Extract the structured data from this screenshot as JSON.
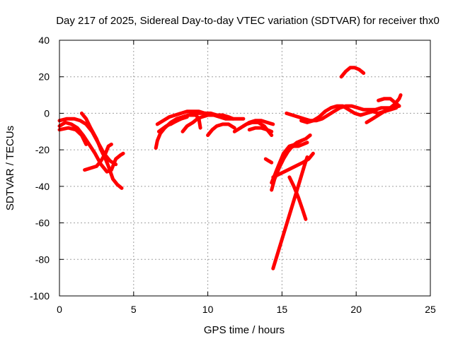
{
  "chart_data": {
    "type": "scatter",
    "title": "Day 217 of 2025, Sidereal Day-to-day VTEC variation (SDTVAR) for receiver thx0",
    "xlabel": "GPS time / hours",
    "ylabel": "SDTVAR / TECUs",
    "xlim": [
      0,
      25
    ],
    "ylim": [
      -100,
      40
    ],
    "xticks": [
      0,
      5,
      10,
      15,
      20,
      25
    ],
    "yticks": [
      -100,
      -80,
      -60,
      -40,
      -20,
      0,
      20,
      40
    ],
    "grid": true,
    "legend": "none",
    "marker": "plus",
    "color": "#ff0000",
    "tracks": [
      [
        [
          0,
          -4
        ],
        [
          0.5,
          -3
        ],
        [
          1.0,
          -3
        ],
        [
          1.4,
          -4
        ],
        [
          1.8,
          -6
        ],
        [
          2.2,
          -10
        ],
        [
          2.6,
          -16
        ],
        [
          3.0,
          -22
        ],
        [
          3.4,
          -26
        ],
        [
          3.8,
          -28
        ]
      ],
      [
        [
          0,
          -7
        ],
        [
          0.4,
          -5
        ],
        [
          0.8,
          -6
        ],
        [
          1.2,
          -8
        ],
        [
          1.6,
          -12
        ],
        [
          2.0,
          -17
        ],
        [
          2.4,
          -22
        ],
        [
          2.8,
          -28
        ],
        [
          3.2,
          -32
        ],
        [
          3.5,
          -31
        ],
        [
          3.8,
          -25
        ],
        [
          4.1,
          -23
        ],
        [
          4.3,
          -22
        ]
      ],
      [
        [
          0,
          -9
        ],
        [
          0.6,
          -8
        ],
        [
          1.1,
          -9
        ],
        [
          1.5,
          -12
        ],
        [
          1.8,
          -17
        ]
      ],
      [
        [
          1.5,
          0
        ],
        [
          1.8,
          -3
        ],
        [
          2.1,
          -8
        ],
        [
          2.5,
          -14
        ],
        [
          2.8,
          -20
        ],
        [
          3.1,
          -25
        ],
        [
          3.3,
          -29
        ],
        [
          3.6,
          -36
        ],
        [
          3.9,
          -39
        ],
        [
          4.2,
          -41
        ]
      ],
      [
        [
          1.7,
          -31
        ],
        [
          2.1,
          -30
        ],
        [
          2.5,
          -29
        ],
        [
          2.8,
          -26
        ],
        [
          3.1,
          -22
        ],
        [
          3.3,
          -18
        ],
        [
          3.5,
          -17
        ]
      ],
      [
        [
          6.5,
          -19
        ],
        [
          6.6,
          -15
        ],
        [
          6.8,
          -11
        ],
        [
          7.1,
          -8
        ],
        [
          7.5,
          -5
        ],
        [
          7.9,
          -3
        ],
        [
          8.3,
          -2
        ],
        [
          8.7,
          -1
        ],
        [
          9.0,
          -1
        ],
        [
          9.2,
          -1
        ],
        [
          9.4,
          -3
        ],
        [
          9.5,
          -8
        ]
      ],
      [
        [
          6.6,
          -6
        ],
        [
          7.0,
          -4
        ],
        [
          7.4,
          -2
        ],
        [
          7.8,
          -1
        ],
        [
          8.2,
          0
        ],
        [
          8.6,
          1
        ],
        [
          9.0,
          1
        ],
        [
          9.4,
          1
        ],
        [
          9.8,
          0
        ],
        [
          10.2,
          0
        ],
        [
          10.6,
          -1
        ],
        [
          11.0,
          -1
        ],
        [
          11.4,
          -2
        ],
        [
          11.7,
          -3
        ]
      ],
      [
        [
          6.7,
          -10
        ],
        [
          7.2,
          -7
        ],
        [
          7.7,
          -5
        ],
        [
          8.2,
          -3
        ],
        [
          8.6,
          -2
        ]
      ],
      [
        [
          8.3,
          -10
        ],
        [
          8.6,
          -7
        ],
        [
          9.0,
          -5
        ],
        [
          9.3,
          -3
        ],
        [
          9.6,
          -2
        ],
        [
          10.0,
          -1
        ],
        [
          10.4,
          -1
        ],
        [
          10.8,
          -2
        ],
        [
          11.2,
          -3
        ],
        [
          11.6,
          -3
        ],
        [
          12.0,
          -3
        ],
        [
          12.4,
          -3
        ]
      ],
      [
        [
          7.5,
          -6
        ],
        [
          7.9,
          -4
        ],
        [
          8.3,
          -2
        ],
        [
          8.7,
          -1
        ],
        [
          9.1,
          0
        ],
        [
          9.5,
          0
        ],
        [
          9.9,
          0
        ],
        [
          10.3,
          -1
        ]
      ],
      [
        [
          10.0,
          -12
        ],
        [
          10.3,
          -9
        ],
        [
          10.6,
          -7
        ],
        [
          11.0,
          -6
        ],
        [
          11.4,
          -6
        ],
        [
          11.8,
          -8
        ]
      ],
      [
        [
          12.4,
          -7
        ],
        [
          12.8,
          -5
        ],
        [
          13.2,
          -4
        ],
        [
          13.6,
          -4
        ],
        [
          14.0,
          -5
        ],
        [
          14.4,
          -6
        ]
      ],
      [
        [
          11.8,
          -10
        ],
        [
          12.2,
          -8
        ],
        [
          12.6,
          -6
        ],
        [
          13.0,
          -5
        ],
        [
          13.4,
          -5
        ],
        [
          13.8,
          -7
        ],
        [
          14.1,
          -10
        ],
        [
          14.3,
          -12
        ]
      ],
      [
        [
          12.8,
          -9
        ],
        [
          13.2,
          -8
        ],
        [
          13.6,
          -8
        ],
        [
          14.0,
          -9
        ],
        [
          14.3,
          -10
        ]
      ],
      [
        [
          13.9,
          -25
        ],
        [
          14.1,
          -26
        ],
        [
          14.3,
          -27
        ]
      ],
      [
        [
          14.3,
          -42
        ],
        [
          14.5,
          -36
        ],
        [
          14.8,
          -30
        ],
        [
          15.1,
          -25
        ],
        [
          15.4,
          -21
        ],
        [
          15.7,
          -18
        ],
        [
          16.0,
          -16
        ],
        [
          16.3,
          -15
        ],
        [
          16.6,
          -14
        ],
        [
          16.9,
          -12
        ]
      ],
      [
        [
          14.4,
          -38
        ],
        [
          14.6,
          -32
        ],
        [
          14.9,
          -26
        ],
        [
          15.2,
          -22
        ],
        [
          15.5,
          -19
        ],
        [
          15.8,
          -18
        ],
        [
          16.1,
          -18
        ],
        [
          16.4,
          -17
        ],
        [
          16.7,
          -16
        ]
      ],
      [
        [
          14.4,
          -35
        ],
        [
          14.9,
          -33
        ],
        [
          15.4,
          -31
        ],
        [
          15.9,
          -29
        ],
        [
          16.4,
          -27
        ],
        [
          16.8,
          -25
        ],
        [
          17.1,
          -22
        ]
      ],
      [
        [
          14.4,
          -85
        ],
        [
          14.7,
          -77
        ],
        [
          15.0,
          -69
        ],
        [
          15.3,
          -61
        ],
        [
          15.6,
          -53
        ],
        [
          15.9,
          -45
        ],
        [
          16.2,
          -37
        ],
        [
          16.5,
          -29
        ],
        [
          16.7,
          -24
        ]
      ],
      [
        [
          14.3,
          -38
        ],
        [
          14.7,
          -30
        ],
        [
          15.1,
          -22
        ],
        [
          15.5,
          -18
        ],
        [
          15.9,
          -17
        ],
        [
          16.3,
          -15
        ]
      ],
      [
        [
          15.5,
          -35
        ],
        [
          15.8,
          -40
        ],
        [
          16.1,
          -46
        ],
        [
          16.4,
          -53
        ],
        [
          16.6,
          -58
        ]
      ],
      [
        [
          15.3,
          0
        ],
        [
          15.7,
          -1
        ],
        [
          16.1,
          -2
        ],
        [
          16.5,
          -3
        ],
        [
          16.9,
          -4
        ],
        [
          17.3,
          -4
        ],
        [
          17.7,
          -3
        ],
        [
          18.1,
          -1
        ],
        [
          18.5,
          1
        ],
        [
          18.9,
          3
        ],
        [
          19.3,
          4
        ],
        [
          19.7,
          4
        ],
        [
          20.1,
          3
        ],
        [
          20.5,
          2
        ],
        [
          20.9,
          2
        ],
        [
          21.3,
          2
        ],
        [
          21.7,
          3
        ],
        [
          22.1,
          3
        ],
        [
          22.5,
          3
        ],
        [
          22.9,
          4
        ]
      ],
      [
        [
          16.3,
          -4
        ],
        [
          16.7,
          -5
        ],
        [
          17.1,
          -4
        ],
        [
          17.5,
          -2
        ],
        [
          17.9,
          1
        ],
        [
          18.3,
          3
        ],
        [
          18.7,
          4
        ],
        [
          19.1,
          4
        ],
        [
          19.5,
          2
        ],
        [
          19.9,
          0
        ],
        [
          20.3,
          -1
        ],
        [
          20.7,
          0
        ],
        [
          21.1,
          1
        ],
        [
          21.5,
          0
        ],
        [
          21.9,
          1
        ],
        [
          22.3,
          2
        ],
        [
          22.7,
          3
        ]
      ],
      [
        [
          19.0,
          20
        ],
        [
          19.3,
          23
        ],
        [
          19.6,
          25
        ],
        [
          19.9,
          25
        ],
        [
          20.2,
          24
        ],
        [
          20.5,
          22
        ]
      ],
      [
        [
          20.7,
          -5
        ],
        [
          21.1,
          -3
        ],
        [
          21.5,
          -1
        ],
        [
          21.9,
          1
        ],
        [
          22.3,
          3
        ],
        [
          22.6,
          5
        ],
        [
          22.9,
          8
        ],
        [
          23.0,
          10
        ]
      ],
      [
        [
          21.5,
          7
        ],
        [
          21.9,
          8
        ],
        [
          22.3,
          8
        ],
        [
          22.6,
          6
        ],
        [
          22.9,
          4
        ]
      ]
    ]
  }
}
